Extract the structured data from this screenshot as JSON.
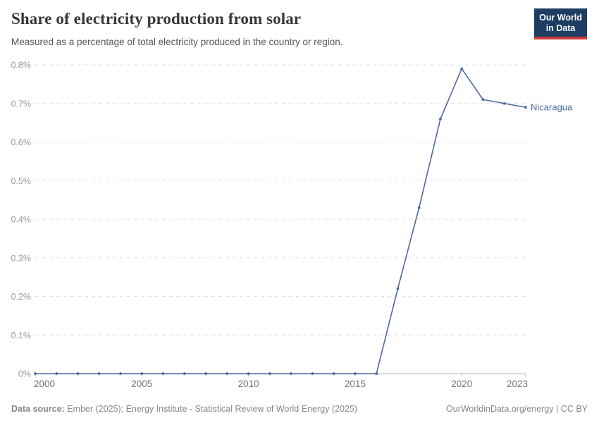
{
  "header": {
    "title": "Share of electricity production from solar",
    "subtitle": "Measured as a percentage of total electricity produced in the country or region.",
    "logo": {
      "line1": "Our World",
      "line2": "in Data"
    }
  },
  "footer": {
    "source_label": "Data source:",
    "source_text": " Ember (2025); Energy Institute - Statistical Review of World Energy (2025)",
    "link_text": "OurWorldinData.org/energy | CC BY"
  },
  "colors": {
    "line": "#4c6a9c",
    "entity_label": "#4c6a9c",
    "grid": "#e2e2e2",
    "axis": "#b9b9b9",
    "logo_bg": "#1d3d63",
    "logo_red": "#cf3b3b"
  },
  "chart_data": {
    "type": "line",
    "title": "Share of electricity production from solar",
    "subtitle": "Measured as a percentage of total electricity produced in the country or region.",
    "xlabel": "",
    "ylabel": "",
    "unit": "%",
    "xlim": [
      2000,
      2023
    ],
    "ylim": [
      0,
      0.8
    ],
    "grid": true,
    "legend_position": "end-of-line",
    "x_labelled_ticks": [
      2000,
      2005,
      2010,
      2015,
      2020,
      2023
    ],
    "y_ticks": [
      0,
      0.1,
      0.2,
      0.3,
      0.4,
      0.5,
      0.6,
      0.7,
      0.8
    ],
    "y_tick_labels": [
      "0%",
      "0.1%",
      "0.2%",
      "0.3%",
      "0.4%",
      "0.5%",
      "0.6%",
      "0.7%",
      "0.8%"
    ],
    "series": [
      {
        "name": "Nicaragua",
        "x": [
          2000,
          2001,
          2002,
          2003,
          2004,
          2005,
          2006,
          2007,
          2008,
          2009,
          2010,
          2011,
          2012,
          2013,
          2014,
          2015,
          2016,
          2017,
          2018,
          2019,
          2020,
          2021,
          2022,
          2023
        ],
        "values": [
          0,
          0,
          0,
          0,
          0,
          0,
          0,
          0,
          0,
          0,
          0,
          0,
          0,
          0,
          0,
          0,
          0,
          0.22,
          0.43,
          0.66,
          0.79,
          0.71,
          0.7,
          0.69
        ]
      }
    ]
  }
}
